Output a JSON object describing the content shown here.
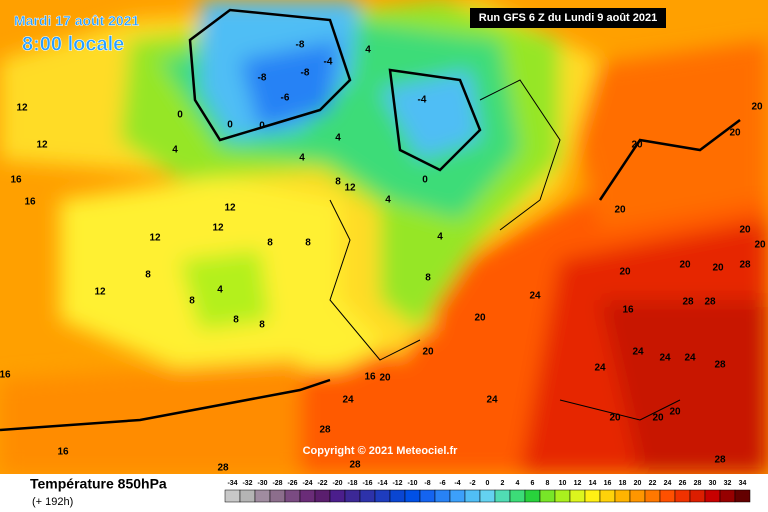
{
  "header": {
    "date": "Mardi 17 août 2021",
    "time": "8:00 locale",
    "run": "Run GFS 6 Z du Lundi 9 août 2021"
  },
  "copyright": "Copyright © 2021 Meteociel.fr",
  "legend": {
    "title": "Température 850hPa",
    "lead": "(+ 192h)",
    "scale": [
      {
        "value": -34,
        "color": "#c8c8c8"
      },
      {
        "value": -32,
        "color": "#b4b4b4"
      },
      {
        "value": -30,
        "color": "#a08ca0"
      },
      {
        "value": -28,
        "color": "#8c6e8c"
      },
      {
        "value": -26,
        "color": "#7a4b82"
      },
      {
        "value": -24,
        "color": "#6a2c78"
      },
      {
        "value": -22,
        "color": "#5a1e6e"
      },
      {
        "value": -20,
        "color": "#4b1e8c"
      },
      {
        "value": -18,
        "color": "#3c2896"
      },
      {
        "value": -16,
        "color": "#2d32aa"
      },
      {
        "value": -14,
        "color": "#1e3cbe"
      },
      {
        "value": -12,
        "color": "#0a46d2"
      },
      {
        "value": -10,
        "color": "#0050e6"
      },
      {
        "value": -8,
        "color": "#1464f0"
      },
      {
        "value": -6,
        "color": "#2882f5"
      },
      {
        "value": -4,
        "color": "#3ca0fa"
      },
      {
        "value": -2,
        "color": "#50bef5"
      },
      {
        "value": 0,
        "color": "#64d2f0"
      },
      {
        "value": 2,
        "color": "#50dcb4"
      },
      {
        "value": 4,
        "color": "#3cdc78"
      },
      {
        "value": 6,
        "color": "#28d23c"
      },
      {
        "value": 8,
        "color": "#78e628"
      },
      {
        "value": 10,
        "color": "#aaf01e"
      },
      {
        "value": 12,
        "color": "#dcf51e"
      },
      {
        "value": 14,
        "color": "#fff014"
      },
      {
        "value": 16,
        "color": "#ffd20a"
      },
      {
        "value": 18,
        "color": "#ffb400"
      },
      {
        "value": 20,
        "color": "#ff9600"
      },
      {
        "value": 22,
        "color": "#ff7800"
      },
      {
        "value": 24,
        "color": "#ff5000"
      },
      {
        "value": 26,
        "color": "#f03200"
      },
      {
        "value": 28,
        "color": "#dc1e00"
      },
      {
        "value": 30,
        "color": "#c80000"
      },
      {
        "value": 32,
        "color": "#960000"
      },
      {
        "value": 34,
        "color": "#640000"
      }
    ]
  },
  "contour_labels": [
    12,
    12,
    16,
    16,
    12,
    12,
    12,
    12,
    8,
    8,
    8,
    8,
    4,
    8,
    8,
    12,
    8,
    0,
    4,
    0,
    0,
    -6,
    -8,
    -4,
    -8,
    -8,
    4,
    4,
    4,
    4,
    0,
    -4,
    4,
    8,
    20,
    20,
    16,
    20,
    24,
    24,
    24,
    24,
    16,
    24,
    24,
    24,
    28,
    28,
    28,
    20,
    20,
    20,
    20,
    20,
    20,
    20,
    28,
    20,
    20,
    20,
    20,
    20,
    28,
    28,
    28,
    28,
    16,
    16
  ]
}
